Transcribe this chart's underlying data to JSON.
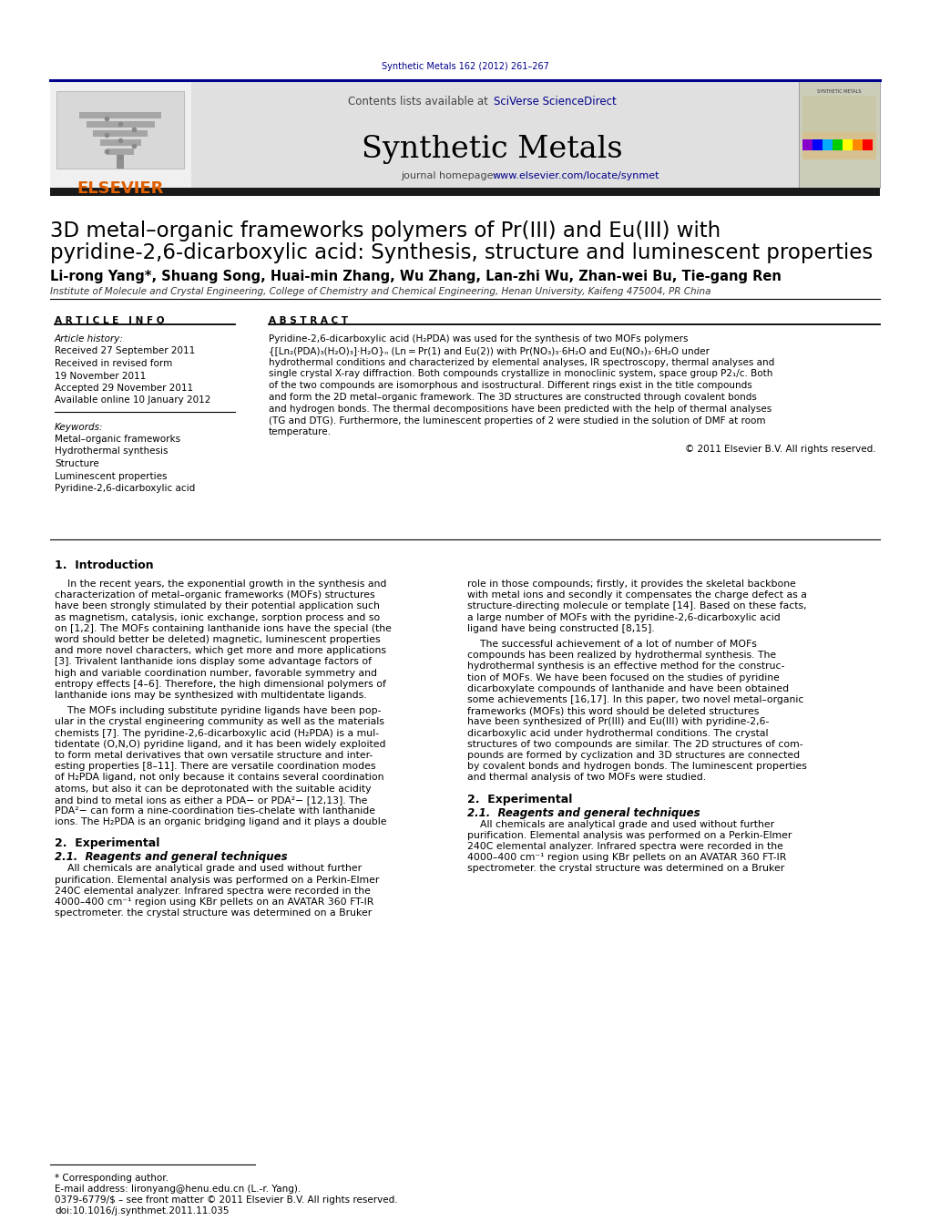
{
  "journal_info": "Synthetic Metals 162 (2012) 261–267",
  "journal_name": "Synthetic Metals",
  "contents_prefix": "Contents lists available at ",
  "sciverse_text": "SciVerse ScienceDirect",
  "homepage_prefix": "journal homepage: ",
  "homepage_url": "www.elsevier.com/locate/synmet",
  "elsevier_text": "ELSEVIER",
  "paper_title_line1": "3D metal–organic frameworks polymers of Pr(III) and Eu(III) with",
  "paper_title_line2": "pyridine-2,6-dicarboxylic acid: Synthesis, structure and luminescent properties",
  "authors": "Li-rong Yang*, Shuang Song, Huai-min Zhang, Wu Zhang, Lan-zhi Wu, Zhan-wei Bu, Tie-gang Ren",
  "affiliation": "Institute of Molecule and Crystal Engineering, College of Chemistry and Chemical Engineering, Henan University, Kaifeng 475004, PR China",
  "article_info_header": "A R T I C L E   I N F O",
  "abstract_header": "A B S T R A C T",
  "article_history_label": "Article history:",
  "received_label": "Received 27 September 2011",
  "revised_label": "Received in revised form",
  "revised_date": "19 November 2011",
  "accepted_label": "Accepted 29 November 2011",
  "online_label": "Available online 10 January 2012",
  "keywords_label": "Keywords:",
  "kw1": "Metal–organic frameworks",
  "kw2": "Hydrothermal synthesis",
  "kw3": "Structure",
  "kw4": "Luminescent properties",
  "kw5": "Pyridine-2,6-dicarboxylic acid",
  "abstract_lines": [
    "Pyridine-2,6-dicarboxylic acid (H₂PDA) was used for the synthesis of two MOFs polymers",
    "{[Ln₂(PDA)₃(H₂O)₃]·H₂O}ₙ (Ln = Pr(1) and Eu(2)) with Pr(NO₃)₃·6H₂O and Eu(NO₃)₃·6H₂O under",
    "hydrothermal conditions and characterized by elemental analyses, IR spectroscopy, thermal analyses and",
    "single crystal X-ray diffraction. Both compounds crystallize in monoclinic system, space group P2₁/c. Both",
    "of the two compounds are isomorphous and isostructural. Different rings exist in the title compounds",
    "and form the 2D metal–organic framework. The 3D structures are constructed through covalent bonds",
    "and hydrogen bonds. The thermal decompositions have been predicted with the help of thermal analyses",
    "(TG and DTG). Furthermore, the luminescent properties of 2 were studied in the solution of DMF at room",
    "temperature."
  ],
  "copyright_text": "© 2011 Elsevier B.V. All rights reserved.",
  "intro_header": "1.  Introduction",
  "intro_p1_indent": "    In the recent years, the exponential growth in the synthesis and",
  "intro_p1": [
    "    In the recent years, the exponential growth in the synthesis and",
    "characterization of metal–organic frameworks (MOFs) structures",
    "have been strongly stimulated by their potential application such",
    "as magnetism, catalysis, ionic exchange, sorption process and so",
    "on [1,2]. The MOFs containing lanthanide ions have the special (the",
    "word should better be deleted) magnetic, luminescent properties",
    "and more novel characters, which get more and more applications",
    "[3]. Trivalent lanthanide ions display some advantage factors of",
    "high and variable coordination number, favorable symmetry and",
    "entropy effects [4–6]. Therefore, the high dimensional polymers of",
    "lanthanide ions may be synthesized with multidentate ligands."
  ],
  "intro_p2": [
    "    The MOFs including substitute pyridine ligands have been pop-",
    "ular in the crystal engineering community as well as the materials",
    "chemists [7]. The pyridine-2,6-dicarboxylic acid (H₂PDA) is a mul-",
    "tidentate (O,N,O) pyridine ligand, and it has been widely exploited",
    "to form metal derivatives that own versatile structure and inter-",
    "esting properties [8–11]. There are versatile coordination modes",
    "of H₂PDA ligand, not only because it contains several coordination",
    "atoms, but also it can be deprotonated with the suitable acidity",
    "and bind to metal ions as either a PDA− or PDA²− [12,13]. The",
    "PDA²− can form a nine-coordination ties-chelate with lanthanide",
    "ions. The H₂PDA is an organic bridging ligand and it plays a double"
  ],
  "right_p1": [
    "role in those compounds; firstly, it provides the skeletal backbone",
    "with metal ions and secondly it compensates the charge defect as a",
    "structure-directing molecule or template [14]. Based on these facts,",
    "a large number of MOFs with the pyridine-2,6-dicarboxylic acid",
    "ligand have being constructed [8,15]."
  ],
  "right_p2": [
    "    The successful achievement of a lot of number of MOFs",
    "compounds has been realized by hydrothermal synthesis. The",
    "hydrothermal synthesis is an effective method for the construc-",
    "tion of MOFs. We have been focused on the studies of pyridine",
    "dicarboxylate compounds of lanthanide and have been obtained",
    "some achievements [16,17]. In this paper, two novel metal–organic",
    "frameworks (MOFs) this word should be deleted structures",
    "have been synthesized of Pr(III) and Eu(III) with pyridine-2,6-",
    "dicarboxylic acid under hydrothermal conditions. The crystal",
    "structures of two compounds are similar. The 2D structures of com-",
    "pounds are formed by cyclization and 3D structures are connected",
    "by covalent bonds and hydrogen bonds. The luminescent properties",
    "and thermal analysis of two MOFs were studied."
  ],
  "section2_header": "2.  Experimental",
  "section21_header": "2.1.  Reagents and general techniques",
  "section21_text": [
    "    All chemicals are analytical grade and used without further",
    "purification. Elemental analysis was performed on a Perkin-Elmer",
    "240C elemental analyzer. Infrared spectra were recorded in the",
    "4000–400 cm⁻¹ region using KBr pellets on an AVATAR 360 FT-IR",
    "spectrometer. the crystal structure was determined on a Bruker"
  ],
  "footnote_star": "* Corresponding author.",
  "footnote_email": "E-mail address: lironyang@henu.edu.cn (L.-r. Yang).",
  "footnote_issn": "0379-6779/$ – see front matter © 2011 Elsevier B.V. All rights reserved.",
  "footnote_doi": "doi:10.1016/j.synthmet.2011.11.035",
  "page_bg": "#ffffff",
  "header_bg": "#e0e0e0",
  "dark_bar": "#1a1a1a",
  "top_rule": "#00008b",
  "orange": "#e06000",
  "link_blue": "#00008b",
  "text_black": "#000000",
  "text_dark": "#222222"
}
